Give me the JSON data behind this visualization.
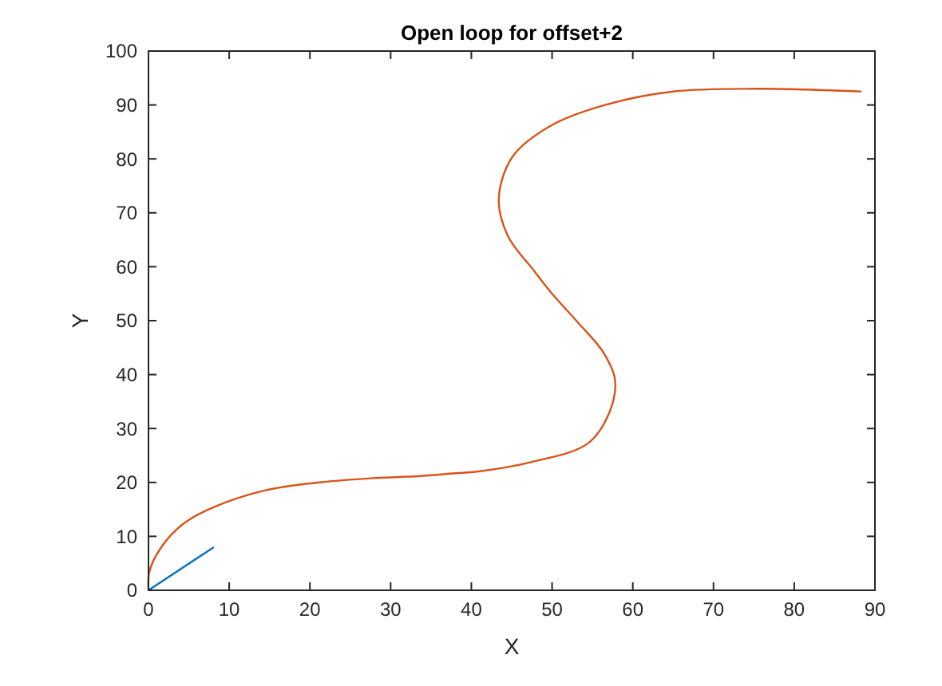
{
  "chart_data": {
    "type": "line",
    "title": "Open loop for offset+2",
    "xlabel": "X",
    "ylabel": "Y",
    "xlim": [
      0,
      90
    ],
    "ylim": [
      0,
      100
    ],
    "xticks": [
      0,
      10,
      20,
      30,
      40,
      50,
      60,
      70,
      80,
      90
    ],
    "yticks": [
      0,
      10,
      20,
      30,
      40,
      50,
      60,
      70,
      80,
      90,
      100
    ],
    "grid": false,
    "marker": "none",
    "line_style": "solid",
    "series": [
      {
        "color": "#d95319",
        "x": [
          0,
          0.1,
          1.5,
          4.2,
          7.6,
          14.4,
          21.2,
          27.9,
          33.8,
          38,
          40.7,
          47.5,
          54.4,
          57.1,
          57.8,
          56.4,
          53,
          50,
          47.9,
          44.5,
          43.4,
          45.1,
          49.9,
          56.8,
          65,
          75.3,
          88.3
        ],
        "values": [
          0,
          3.4,
          7.8,
          12.2,
          15.1,
          18.5,
          20,
          20.8,
          21.2,
          21.7,
          22,
          23.8,
          27.2,
          33,
          39,
          44,
          50,
          55,
          59,
          65.8,
          72.6,
          80.4,
          86.2,
          90.1,
          92.5,
          93,
          92.5
        ]
      },
      {
        "color": "#0072bd",
        "x": [
          0,
          8.1
        ],
        "values": [
          0,
          8
        ]
      }
    ]
  }
}
